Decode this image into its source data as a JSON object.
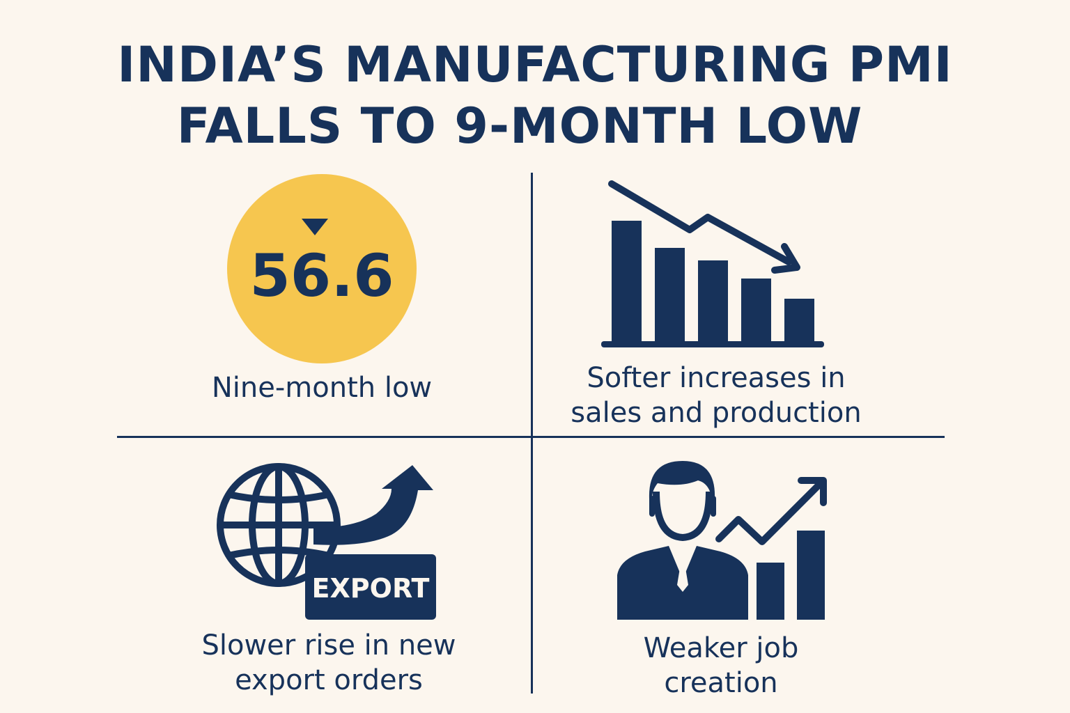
{
  "title": {
    "line1": "INDIA’S MANUFACTURING PMI",
    "line2": "FALLS TO 9-MONTH LOW"
  },
  "panels": {
    "pmi": {
      "value": "56.6",
      "caption": "Nine-month low",
      "circle_color": "#f6c64f"
    },
    "sales": {
      "caption_line1": "Softer increases in",
      "caption_line2": "sales and production"
    },
    "export": {
      "badge": "EXPORT",
      "caption_line1": "Slower rise in new",
      "caption_line2": "export orders"
    },
    "jobs": {
      "caption_line1": "Weaker job",
      "caption_line2": "creation"
    }
  },
  "colors": {
    "background": "#fcf6ee",
    "navy": "#17325a",
    "accent_yellow": "#f6c64f"
  }
}
